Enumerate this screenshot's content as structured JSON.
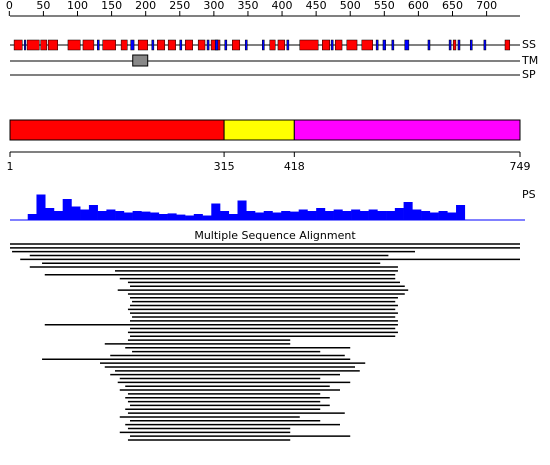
{
  "ruler": {
    "ticks": [
      0,
      50,
      100,
      150,
      200,
      250,
      300,
      350,
      400,
      450,
      500,
      550,
      600,
      650,
      700
    ]
  },
  "tracks": {
    "ss": {
      "label": "SS",
      "helices": [
        [
          7,
          19
        ],
        [
          26,
          44
        ],
        [
          46,
          55
        ],
        [
          57,
          71
        ],
        [
          86,
          104
        ],
        [
          108,
          124
        ],
        [
          137,
          156
        ],
        [
          164,
          173
        ],
        [
          189,
          203
        ],
        [
          217,
          228
        ],
        [
          233,
          244
        ],
        [
          258,
          269
        ],
        [
          277,
          287
        ],
        [
          296,
          309
        ],
        [
          327,
          338
        ],
        [
          382,
          390
        ],
        [
          394,
          404
        ],
        [
          426,
          453
        ],
        [
          459,
          470
        ],
        [
          478,
          488
        ],
        [
          495,
          510
        ],
        [
          517,
          533
        ],
        [
          651,
          655
        ],
        [
          727,
          734
        ]
      ],
      "strands": [
        [
          22,
          24
        ],
        [
          129,
          132
        ],
        [
          178,
          183
        ],
        [
          209,
          212
        ],
        [
          250,
          253
        ],
        [
          290,
          293
        ],
        [
          302,
          306
        ],
        [
          316,
          319
        ],
        [
          346,
          349
        ],
        [
          371,
          374
        ],
        [
          407,
          410
        ],
        [
          472,
          475
        ],
        [
          538,
          541
        ],
        [
          548,
          552
        ],
        [
          561,
          564
        ],
        [
          580,
          586
        ],
        [
          614,
          617
        ],
        [
          645,
          648
        ],
        [
          658,
          661
        ],
        [
          676,
          679
        ],
        [
          696,
          699
        ]
      ]
    },
    "tm": {
      "label": "TM",
      "segments": [
        [
          181,
          203
        ]
      ]
    },
    "sp": {
      "label": "SP"
    }
  },
  "domains": [
    {
      "start": 1,
      "end": 315,
      "color": "#ff0000"
    },
    {
      "start": 315,
      "end": 418,
      "color": "#ffff00"
    },
    {
      "start": 418,
      "end": 749,
      "color": "#ff00ff"
    }
  ],
  "ps": {
    "label": "PS",
    "start": 27,
    "end": 668,
    "values": [
      0.2,
      0.85,
      0.4,
      0.3,
      0.7,
      0.45,
      0.35,
      0.5,
      0.3,
      0.35,
      0.3,
      0.25,
      0.3,
      0.28,
      0.25,
      0.2,
      0.22,
      0.18,
      0.15,
      0.2,
      0.15,
      0.55,
      0.3,
      0.2,
      0.65,
      0.3,
      0.25,
      0.3,
      0.25,
      0.3,
      0.28,
      0.35,
      0.3,
      0.4,
      0.3,
      0.35,
      0.3,
      0.35,
      0.3,
      0.35,
      0.3,
      0.3,
      0.4,
      0.6,
      0.35,
      0.3,
      0.25,
      0.3,
      0.25,
      0.5
    ]
  },
  "msa": {
    "title": "Multiple Sequence Alignment",
    "alignments": [
      [
        1,
        749
      ],
      [
        1,
        749
      ],
      [
        4,
        595
      ],
      [
        30,
        556
      ],
      [
        16,
        749
      ],
      [
        48,
        544
      ],
      [
        30,
        570
      ],
      [
        155,
        570
      ],
      [
        52,
        566
      ],
      [
        162,
        566
      ],
      [
        174,
        573
      ],
      [
        177,
        580
      ],
      [
        159,
        585
      ],
      [
        174,
        580
      ],
      [
        177,
        570
      ],
      [
        180,
        566
      ],
      [
        177,
        570
      ],
      [
        174,
        566
      ],
      [
        177,
        570
      ],
      [
        180,
        566
      ],
      [
        177,
        570
      ],
      [
        52,
        570
      ],
      [
        177,
        566
      ],
      [
        174,
        570
      ],
      [
        177,
        566
      ],
      [
        174,
        412
      ],
      [
        140,
        412
      ],
      [
        170,
        500
      ],
      [
        180,
        456
      ],
      [
        148,
        492
      ],
      [
        48,
        500
      ],
      [
        133,
        522
      ],
      [
        140,
        507
      ],
      [
        155,
        514
      ],
      [
        148,
        485
      ],
      [
        162,
        456
      ],
      [
        159,
        500
      ],
      [
        170,
        470
      ],
      [
        162,
        485
      ],
      [
        174,
        456
      ],
      [
        170,
        470
      ],
      [
        174,
        456
      ],
      [
        177,
        470
      ],
      [
        170,
        456
      ],
      [
        174,
        492
      ],
      [
        162,
        426
      ],
      [
        177,
        456
      ],
      [
        170,
        485
      ],
      [
        174,
        412
      ],
      [
        162,
        412
      ],
      [
        177,
        500
      ],
      [
        174,
        412
      ]
    ]
  }
}
